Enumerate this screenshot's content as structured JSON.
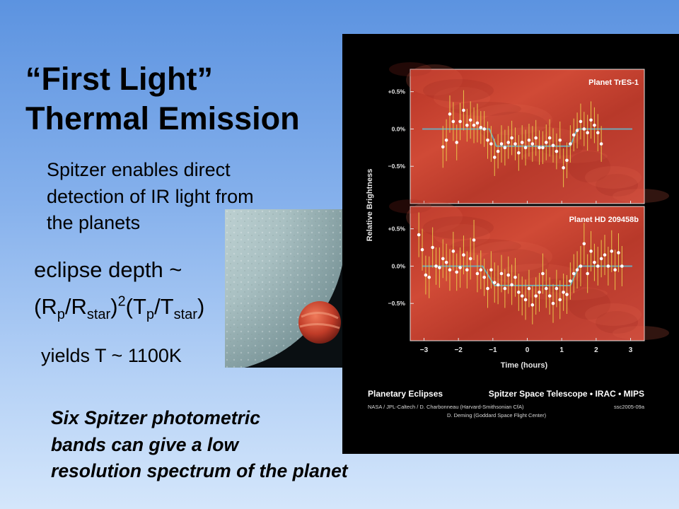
{
  "slide": {
    "title_line1": "“First Light”",
    "title_line2": "Thermal Emission",
    "intro_lines": [
      "Spitzer enables direct",
      "detection of IR light from",
      "the planets"
    ],
    "formula": {
      "line1": "eclipse depth ~",
      "R": "R",
      "p": "p",
      "star": "star",
      "exp": "2",
      "T": "T"
    },
    "yields": "yields T ~ 1100K",
    "conclusion_lines": [
      "Six Spitzer photometric",
      "bands can give a low",
      "resolution spectrum of the planet"
    ]
  },
  "figure": {
    "caption_title": "Planetary Eclipses",
    "caption_mission": "Spitzer Space Telescope • IRAC • MIPS",
    "credit_line1": "NASA / JPL-Caltech / D. Charbonneau (Harvard-Smithsonian CfA)",
    "credit_line2": "D. Deming (Goddard Space Flight Center)",
    "image_id": "ssc2005-09a"
  },
  "chart_data": {
    "type": "scatter",
    "ylabel": "Relative Brightness",
    "xlabel": "Time (hours)",
    "xlim": [
      -3.4,
      3.4
    ],
    "xticks": [
      -3,
      -2,
      -1,
      0,
      1,
      2,
      3
    ],
    "xtick_labels": [
      "−3",
      "−2",
      "−1",
      "0",
      "1",
      "2",
      "3"
    ],
    "ylim": [
      -1.0,
      0.8
    ],
    "yticks": [
      0.5,
      0.0,
      -0.5
    ],
    "ytick_labels": [
      "+0.5%",
      "0.0%",
      "−0.5%"
    ],
    "panels": [
      {
        "name": "Planet TrES-1",
        "model": {
          "depth": -0.23,
          "ingress": [
            -1.1,
            -0.9
          ],
          "egress": [
            1.25,
            1.45
          ]
        },
        "points": [
          {
            "x": -2.45,
            "y": -0.24,
            "err": 0.28
          },
          {
            "x": -2.35,
            "y": -0.15,
            "err": 0.28
          },
          {
            "x": -2.25,
            "y": 0.2,
            "err": 0.25
          },
          {
            "x": -2.15,
            "y": 0.1,
            "err": 0.26
          },
          {
            "x": -2.05,
            "y": -0.18,
            "err": 0.24
          },
          {
            "x": -1.95,
            "y": 0.1,
            "err": 0.25
          },
          {
            "x": -1.85,
            "y": 0.25,
            "err": 0.27
          },
          {
            "x": -1.75,
            "y": 0.05,
            "err": 0.22
          },
          {
            "x": -1.65,
            "y": 0.12,
            "err": 0.25
          },
          {
            "x": -1.55,
            "y": 0.05,
            "err": 0.24
          },
          {
            "x": -1.45,
            "y": 0.08,
            "err": 0.26
          },
          {
            "x": -1.35,
            "y": 0.02,
            "err": 0.22
          },
          {
            "x": -1.25,
            "y": 0.0,
            "err": 0.24
          },
          {
            "x": -1.15,
            "y": -0.15,
            "err": 0.25
          },
          {
            "x": -1.05,
            "y": -0.2,
            "err": 0.24
          },
          {
            "x": -0.95,
            "y": -0.38,
            "err": 0.25
          },
          {
            "x": -0.85,
            "y": -0.3,
            "err": 0.23
          },
          {
            "x": -0.75,
            "y": -0.2,
            "err": 0.25
          },
          {
            "x": -0.65,
            "y": -0.25,
            "err": 0.24
          },
          {
            "x": -0.55,
            "y": -0.18,
            "err": 0.22
          },
          {
            "x": -0.45,
            "y": -0.12,
            "err": 0.23
          },
          {
            "x": -0.35,
            "y": -0.2,
            "err": 0.22
          },
          {
            "x": -0.25,
            "y": -0.32,
            "err": 0.24
          },
          {
            "x": -0.15,
            "y": -0.18,
            "err": 0.23
          },
          {
            "x": -0.05,
            "y": -0.25,
            "err": 0.24
          },
          {
            "x": 0.05,
            "y": -0.15,
            "err": 0.22
          },
          {
            "x": 0.15,
            "y": -0.2,
            "err": 0.24
          },
          {
            "x": 0.25,
            "y": -0.12,
            "err": 0.24
          },
          {
            "x": 0.35,
            "y": -0.25,
            "err": 0.23
          },
          {
            "x": 0.45,
            "y": -0.25,
            "err": 0.22
          },
          {
            "x": 0.55,
            "y": -0.18,
            "err": 0.24
          },
          {
            "x": 0.65,
            "y": -0.12,
            "err": 0.25
          },
          {
            "x": 0.75,
            "y": -0.22,
            "err": 0.23
          },
          {
            "x": 0.85,
            "y": -0.3,
            "err": 0.24
          },
          {
            "x": 0.95,
            "y": -0.15,
            "err": 0.25
          },
          {
            "x": 1.05,
            "y": -0.52,
            "err": 0.26
          },
          {
            "x": 1.15,
            "y": -0.42,
            "err": 0.24
          },
          {
            "x": 1.25,
            "y": -0.2,
            "err": 0.25
          },
          {
            "x": 1.35,
            "y": -0.08,
            "err": 0.22
          },
          {
            "x": 1.45,
            "y": -0.02,
            "err": 0.24
          },
          {
            "x": 1.55,
            "y": 0.1,
            "err": 0.24
          },
          {
            "x": 1.65,
            "y": 0.0,
            "err": 0.23
          },
          {
            "x": 1.75,
            "y": -0.05,
            "err": 0.24
          },
          {
            "x": 1.85,
            "y": 0.12,
            "err": 0.25
          },
          {
            "x": 1.95,
            "y": 0.05,
            "err": 0.24
          },
          {
            "x": 2.05,
            "y": -0.05,
            "err": 0.25
          },
          {
            "x": 2.15,
            "y": -0.2,
            "err": 0.24
          }
        ]
      },
      {
        "name": "Planet HD 209458b",
        "model": {
          "depth": -0.26,
          "ingress": [
            -1.3,
            -0.95
          ],
          "egress": [
            1.25,
            1.5
          ]
        },
        "points": [
          {
            "x": -3.15,
            "y": 0.42,
            "err": 0.3
          },
          {
            "x": -3.05,
            "y": 0.22,
            "err": 0.28
          },
          {
            "x": -2.95,
            "y": -0.12,
            "err": 0.26
          },
          {
            "x": -2.85,
            "y": -0.15,
            "err": 0.28
          },
          {
            "x": -2.75,
            "y": 0.25,
            "err": 0.27
          },
          {
            "x": -2.65,
            "y": 0.0,
            "err": 0.25
          },
          {
            "x": -2.55,
            "y": -0.02,
            "err": 0.27
          },
          {
            "x": -2.45,
            "y": 0.1,
            "err": 0.26
          },
          {
            "x": -2.35,
            "y": 0.05,
            "err": 0.25
          },
          {
            "x": -2.25,
            "y": -0.05,
            "err": 0.28
          },
          {
            "x": -2.15,
            "y": 0.2,
            "err": 0.26
          },
          {
            "x": -2.05,
            "y": -0.08,
            "err": 0.25
          },
          {
            "x": -1.95,
            "y": -0.02,
            "err": 0.27
          },
          {
            "x": -1.85,
            "y": 0.15,
            "err": 0.26
          },
          {
            "x": -1.75,
            "y": -0.05,
            "err": 0.25
          },
          {
            "x": -1.65,
            "y": 0.1,
            "err": 0.28
          },
          {
            "x": -1.55,
            "y": 0.35,
            "err": 0.27
          },
          {
            "x": -1.45,
            "y": -0.1,
            "err": 0.25
          },
          {
            "x": -1.35,
            "y": -0.05,
            "err": 0.26
          },
          {
            "x": -1.25,
            "y": -0.15,
            "err": 0.25
          },
          {
            "x": -1.15,
            "y": -0.3,
            "err": 0.26
          },
          {
            "x": -1.05,
            "y": -0.05,
            "err": 0.25
          },
          {
            "x": -0.95,
            "y": -0.22,
            "err": 0.27
          },
          {
            "x": -0.85,
            "y": -0.25,
            "err": 0.26
          },
          {
            "x": -0.75,
            "y": -0.1,
            "err": 0.25
          },
          {
            "x": -0.65,
            "y": -0.3,
            "err": 0.26
          },
          {
            "x": -0.55,
            "y": -0.12,
            "err": 0.25
          },
          {
            "x": -0.45,
            "y": -0.25,
            "err": 0.27
          },
          {
            "x": -0.35,
            "y": -0.15,
            "err": 0.26
          },
          {
            "x": -0.25,
            "y": -0.35,
            "err": 0.25
          },
          {
            "x": -0.15,
            "y": -0.4,
            "err": 0.26
          },
          {
            "x": -0.05,
            "y": -0.45,
            "err": 0.27
          },
          {
            "x": 0.05,
            "y": -0.3,
            "err": 0.25
          },
          {
            "x": 0.15,
            "y": -0.52,
            "err": 0.26
          },
          {
            "x": 0.25,
            "y": -0.4,
            "err": 0.25
          },
          {
            "x": 0.35,
            "y": -0.35,
            "err": 0.26
          },
          {
            "x": 0.45,
            "y": -0.1,
            "err": 0.27
          },
          {
            "x": 0.55,
            "y": -0.3,
            "err": 0.26
          },
          {
            "x": 0.65,
            "y": -0.4,
            "err": 0.25
          },
          {
            "x": 0.75,
            "y": -0.5,
            "err": 0.26
          },
          {
            "x": 0.85,
            "y": -0.3,
            "err": 0.25
          },
          {
            "x": 0.95,
            "y": -0.45,
            "err": 0.26
          },
          {
            "x": 1.05,
            "y": -0.35,
            "err": 0.25
          },
          {
            "x": 1.15,
            "y": -0.38,
            "err": 0.26
          },
          {
            "x": 1.25,
            "y": -0.2,
            "err": 0.25
          },
          {
            "x": 1.35,
            "y": -0.1,
            "err": 0.26
          },
          {
            "x": 1.45,
            "y": -0.05,
            "err": 0.25
          },
          {
            "x": 1.55,
            "y": 0.0,
            "err": 0.27
          },
          {
            "x": 1.65,
            "y": 0.3,
            "err": 0.28
          },
          {
            "x": 1.75,
            "y": -0.1,
            "err": 0.26
          },
          {
            "x": 1.85,
            "y": 0.2,
            "err": 0.27
          },
          {
            "x": 1.95,
            "y": 0.05,
            "err": 0.25
          },
          {
            "x": 2.05,
            "y": 0.0,
            "err": 0.26
          },
          {
            "x": 2.15,
            "y": 0.1,
            "err": 0.25
          },
          {
            "x": 2.25,
            "y": 0.15,
            "err": 0.27
          },
          {
            "x": 2.35,
            "y": 0.0,
            "err": 0.26
          },
          {
            "x": 2.45,
            "y": 0.2,
            "err": 0.28
          },
          {
            "x": 2.55,
            "y": -0.05,
            "err": 0.27
          },
          {
            "x": 2.65,
            "y": 0.18,
            "err": 0.26
          },
          {
            "x": 2.75,
            "y": 0.0,
            "err": 0.27
          }
        ]
      }
    ]
  },
  "colors": {
    "panel_red": "#c03a2a",
    "error_bar": "#e8c24a",
    "model_line": "#6fa8b8",
    "point": "#ffffff",
    "tick_text": "#e6e6e6"
  }
}
